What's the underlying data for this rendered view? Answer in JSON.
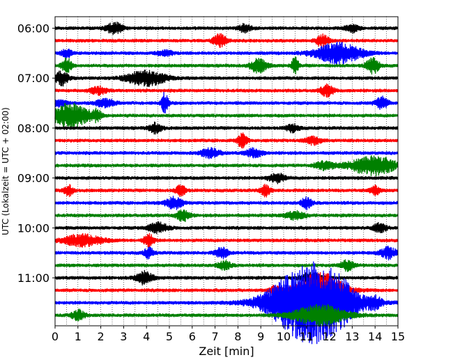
{
  "chart_data": {
    "type": "line",
    "title": "",
    "xlabel": "Zeit  [min]",
    "ylabel": "UTC (Lokalzeit = UTC + 02:00)",
    "xlim": [
      0,
      15
    ],
    "x_ticks": [
      "0",
      "1",
      "2",
      "3",
      "4",
      "5",
      "6",
      "7",
      "8",
      "9",
      "10",
      "11",
      "12",
      "13",
      "14",
      "15"
    ],
    "y_ticks": [
      {
        "row": 0,
        "label": "06:00"
      },
      {
        "row": 4,
        "label": "07:00"
      },
      {
        "row": 8,
        "label": "08:00"
      },
      {
        "row": 12,
        "label": "09:00"
      },
      {
        "row": 16,
        "label": "10:00"
      },
      {
        "row": 20,
        "label": "11:00"
      }
    ],
    "grid": "vertical dotted every 0.5 min",
    "trace_interval_minutes": 15,
    "color_cycle": [
      "#000000",
      "#ff0000",
      "#0000ff",
      "#008000"
    ],
    "traces": [
      {
        "start": "06:00",
        "events": [
          {
            "t": 2.6,
            "amp": 0.45,
            "dur": 0.5
          },
          {
            "t": 8.3,
            "amp": 0.3,
            "dur": 0.4
          },
          {
            "t": 13.0,
            "amp": 0.3,
            "dur": 0.4
          }
        ]
      },
      {
        "start": "06:15",
        "events": [
          {
            "t": 7.2,
            "amp": 0.5,
            "dur": 0.4
          },
          {
            "t": 11.7,
            "amp": 0.45,
            "dur": 0.4
          }
        ]
      },
      {
        "start": "06:30",
        "events": [
          {
            "t": 0.5,
            "amp": 0.35,
            "dur": 0.3
          },
          {
            "t": 4.8,
            "amp": 0.2,
            "dur": 0.5
          },
          {
            "t": 12.4,
            "amp": 0.8,
            "dur": 1.4
          }
        ]
      },
      {
        "start": "06:45",
        "events": [
          {
            "t": 0.5,
            "amp": 0.6,
            "dur": 0.3
          },
          {
            "t": 8.9,
            "amp": 0.55,
            "dur": 0.5
          },
          {
            "t": 10.5,
            "amp": 0.7,
            "dur": 0.2
          },
          {
            "t": 13.9,
            "amp": 0.6,
            "dur": 0.4
          }
        ]
      },
      {
        "start": "07:00",
        "events": [
          {
            "t": 0.3,
            "amp": 0.55,
            "dur": 0.4
          },
          {
            "t": 4.0,
            "amp": 0.6,
            "dur": 1.2
          }
        ]
      },
      {
        "start": "07:15",
        "events": [
          {
            "t": 1.9,
            "amp": 0.3,
            "dur": 0.5
          },
          {
            "t": 11.9,
            "amp": 0.45,
            "dur": 0.4
          }
        ]
      },
      {
        "start": "07:30",
        "events": [
          {
            "t": 0.2,
            "amp": 0.3,
            "dur": 0.4
          },
          {
            "t": 2.2,
            "amp": 0.3,
            "dur": 0.6
          },
          {
            "t": 4.8,
            "amp": 0.8,
            "dur": 0.2
          },
          {
            "t": 14.3,
            "amp": 0.45,
            "dur": 0.4
          }
        ]
      },
      {
        "start": "07:45",
        "events": [
          {
            "t": 0.7,
            "amp": 0.95,
            "dur": 1.1
          },
          {
            "t": 1.8,
            "amp": 0.4,
            "dur": 0.3
          }
        ]
      },
      {
        "start": "08:00",
        "events": [
          {
            "t": 4.4,
            "amp": 0.4,
            "dur": 0.4
          },
          {
            "t": 10.4,
            "amp": 0.3,
            "dur": 0.4
          }
        ]
      },
      {
        "start": "08:15",
        "events": [
          {
            "t": 8.2,
            "amp": 0.55,
            "dur": 0.3
          },
          {
            "t": 11.3,
            "amp": 0.3,
            "dur": 0.5
          }
        ]
      },
      {
        "start": "08:30",
        "events": [
          {
            "t": 6.8,
            "amp": 0.35,
            "dur": 0.6
          },
          {
            "t": 8.7,
            "amp": 0.35,
            "dur": 0.5
          }
        ]
      },
      {
        "start": "08:45",
        "events": [
          {
            "t": 11.8,
            "amp": 0.3,
            "dur": 0.6
          },
          {
            "t": 13.9,
            "amp": 0.75,
            "dur": 1.4
          }
        ]
      },
      {
        "start": "09:00",
        "events": [
          {
            "t": 9.7,
            "amp": 0.35,
            "dur": 0.5
          }
        ]
      },
      {
        "start": "09:15",
        "events": [
          {
            "t": 0.6,
            "amp": 0.4,
            "dur": 0.3
          },
          {
            "t": 5.5,
            "amp": 0.45,
            "dur": 0.3
          },
          {
            "t": 9.2,
            "amp": 0.45,
            "dur": 0.3
          },
          {
            "t": 14.0,
            "amp": 0.35,
            "dur": 0.3
          }
        ]
      },
      {
        "start": "09:30",
        "events": [
          {
            "t": 5.2,
            "amp": 0.5,
            "dur": 0.5
          },
          {
            "t": 11.0,
            "amp": 0.5,
            "dur": 0.3
          }
        ]
      },
      {
        "start": "09:45",
        "events": [
          {
            "t": 5.6,
            "amp": 0.45,
            "dur": 0.4
          },
          {
            "t": 10.5,
            "amp": 0.3,
            "dur": 0.6
          }
        ]
      },
      {
        "start": "10:00",
        "events": [
          {
            "t": 4.5,
            "amp": 0.4,
            "dur": 0.6
          },
          {
            "t": 14.2,
            "amp": 0.35,
            "dur": 0.4
          }
        ]
      },
      {
        "start": "10:15",
        "events": [
          {
            "t": 1.2,
            "amp": 0.45,
            "dur": 1.2
          },
          {
            "t": 4.1,
            "amp": 0.55,
            "dur": 0.3
          }
        ]
      },
      {
        "start": "10:30",
        "events": [
          {
            "t": 4.1,
            "amp": 0.4,
            "dur": 0.3
          },
          {
            "t": 7.3,
            "amp": 0.4,
            "dur": 0.4
          },
          {
            "t": 14.6,
            "amp": 0.45,
            "dur": 0.5
          }
        ]
      },
      {
        "start": "10:45",
        "events": [
          {
            "t": 7.4,
            "amp": 0.35,
            "dur": 0.4
          },
          {
            "t": 12.8,
            "amp": 0.4,
            "dur": 0.4
          }
        ]
      },
      {
        "start": "11:00",
        "events": [
          {
            "t": 3.9,
            "amp": 0.55,
            "dur": 0.5
          },
          {
            "t": 11.2,
            "amp": 0.4,
            "dur": 0.6
          }
        ]
      },
      {
        "start": "11:15",
        "events": [
          {
            "t": 9.6,
            "amp": 0.35,
            "dur": 0.3
          },
          {
            "t": 11.6,
            "amp": 1.4,
            "dur": 1.4
          }
        ]
      },
      {
        "start": "11:30",
        "events": [
          {
            "t": 11.2,
            "amp": 3.2,
            "dur": 2.4
          },
          {
            "t": 12.5,
            "amp": 0.4,
            "dur": 0.8
          },
          {
            "t": 14.0,
            "amp": 0.35,
            "dur": 0.4
          }
        ]
      },
      {
        "start": "11:45",
        "events": [
          {
            "t": 1.0,
            "amp": 0.4,
            "dur": 0.4
          },
          {
            "t": 11.6,
            "amp": 0.8,
            "dur": 1.6
          }
        ]
      }
    ]
  }
}
